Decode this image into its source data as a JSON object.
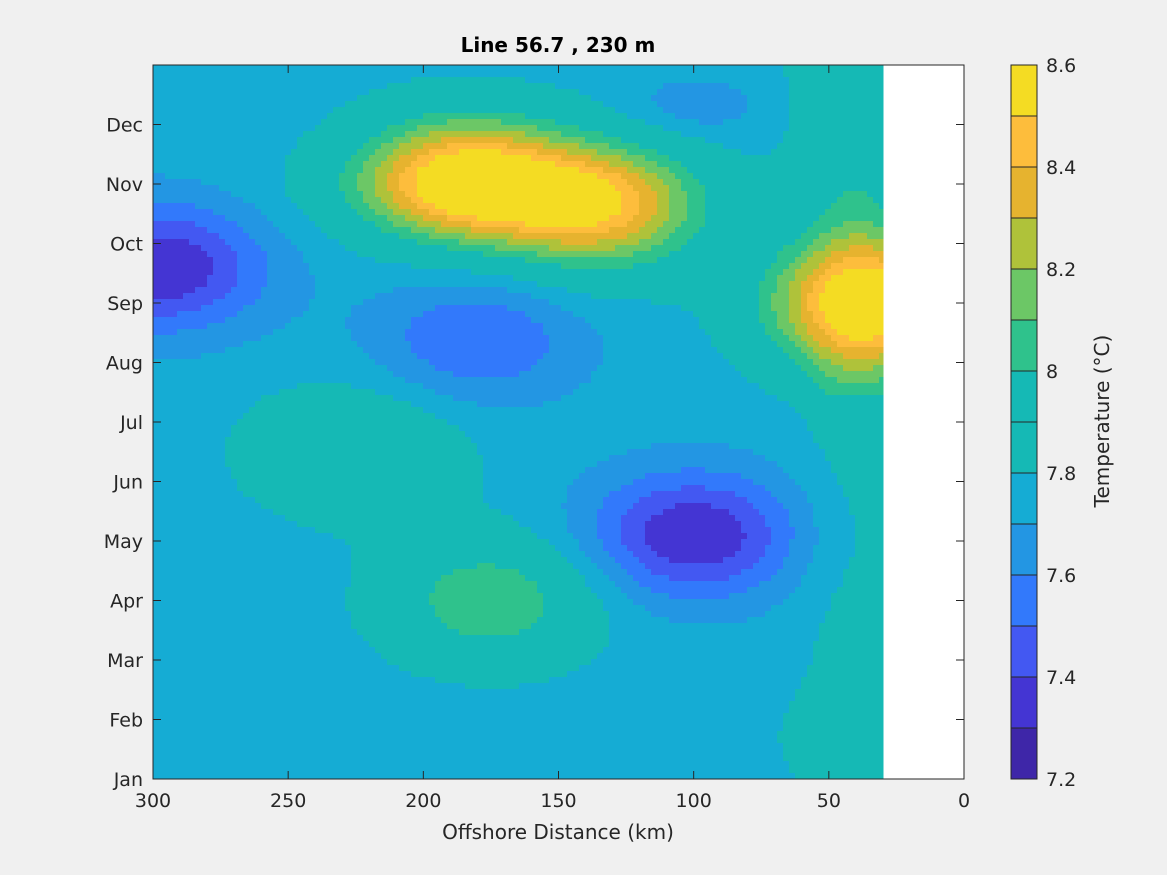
{
  "chart_data": {
    "type": "heatmap",
    "subtype": "filled-contour",
    "title": "Line 56.7 , 230 m",
    "xlabel": "Offshore Distance (km)",
    "ylabel": "",
    "xlim": [
      300,
      0
    ],
    "x_reversed": true,
    "x_ticks": [
      "300",
      "250",
      "200",
      "150",
      "100",
      "50",
      "0"
    ],
    "y_ticks": [
      "Jan",
      "Feb",
      "Mar",
      "Apr",
      "May",
      "Jun",
      "Jul",
      "Aug",
      "Sep",
      "Oct",
      "Nov",
      "Dec"
    ],
    "data_x_extent_km": [
      300,
      30
    ],
    "colorbar": {
      "label": "Temperature (°C)",
      "range": [
        7.2,
        8.6
      ],
      "step": 0.1,
      "tick_labels": [
        "8.6",
        "8.4",
        "8.2",
        "8",
        "7.8",
        "7.6",
        "7.4",
        "7.2"
      ],
      "colors": [
        "#3e26a8",
        "#4435d3",
        "#4358f2",
        "#3279fb",
        "#2396e3",
        "#15acd4",
        "#15b9b5",
        "#2fc28c",
        "#6cc766",
        "#afc23a",
        "#e6b32f",
        "#fdbd3c",
        "#f4dc23"
      ]
    },
    "grid": false,
    "legend": "colorbar-right",
    "features": [
      {
        "type": "min",
        "x_km": 297,
        "month": 8.6,
        "value": 7.3
      },
      {
        "type": "min",
        "x_km": 180,
        "month": 7.4,
        "value": 7.5
      },
      {
        "type": "min",
        "x_km": 100,
        "month": 4.1,
        "value": 7.3
      },
      {
        "type": "max",
        "x_km": 185,
        "month": 10.1,
        "value": 8.5
      },
      {
        "type": "max",
        "x_km": 135,
        "month": 9.6,
        "value": 8.4
      },
      {
        "type": "max",
        "x_km": 35,
        "month": 8.0,
        "value": 8.5
      },
      {
        "type": "max",
        "x_km": 175,
        "month": 3.0,
        "value": 8.1
      },
      {
        "type": "max",
        "x_km": 225,
        "month": 5.5,
        "value": 8.0
      }
    ]
  }
}
